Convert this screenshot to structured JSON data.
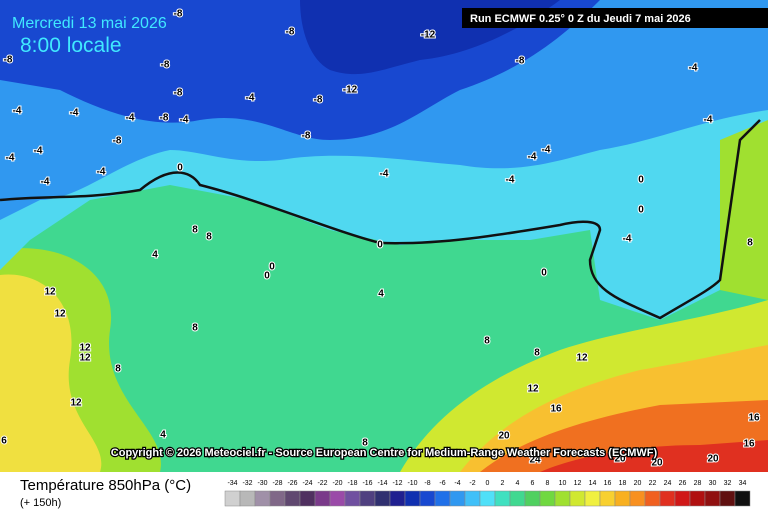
{
  "header": {
    "date": "Mercredi 13 mai 2026",
    "time": "8:00 locale",
    "run": "Run ECMWF 0.25° 0 Z du Jeudi 7 mai 2026"
  },
  "copyright": "Copyright © 2026 Meteociel.fr - Source European Centre for Medium-Range Weather Forecasts (ECMWF)",
  "footer": {
    "title": "Température 850hPa (°C)",
    "lead": "(+ 150h)"
  },
  "scale": {
    "values": [
      -34,
      -32,
      -30,
      -28,
      -26,
      -24,
      -22,
      -20,
      -18,
      -16,
      -14,
      -12,
      -10,
      -8,
      -6,
      -4,
      -2,
      0,
      2,
      4,
      6,
      8,
      10,
      12,
      14,
      16,
      18,
      20,
      22,
      24,
      26,
      28,
      30,
      32,
      34
    ],
    "colors": [
      "#d0d0d0",
      "#b8b8b8",
      "#a090a8",
      "#806888",
      "#604870",
      "#503060",
      "#7a3a8a",
      "#9a4aa8",
      "#7050a0",
      "#504080",
      "#303070",
      "#202090",
      "#1030b0",
      "#1848d0",
      "#2070e8",
      "#3098f0",
      "#40c0f8",
      "#50e0f8",
      "#40e0c0",
      "#40d890",
      "#50d060",
      "#70d840",
      "#a0e030",
      "#d0e830",
      "#f0f040",
      "#f8d030",
      "#f8b020",
      "#f89020",
      "#f06020",
      "#e03020",
      "#d01818",
      "#b01010",
      "#901010",
      "#601010",
      "#101010"
    ]
  },
  "map_labels": [
    -8,
    -8,
    -12,
    -8,
    -8,
    -8,
    -4,
    -12,
    -8,
    -4,
    -8,
    -4,
    -4,
    -4,
    -8,
    -4,
    -4,
    -8,
    -8,
    -4,
    -4,
    -4,
    -4,
    -4,
    -4,
    0,
    -4,
    -4,
    0,
    0,
    -4,
    8,
    8,
    8,
    4,
    0,
    0,
    0,
    0,
    4,
    12,
    12,
    8,
    12,
    12,
    8,
    8,
    8,
    12,
    12,
    12,
    16,
    16,
    16,
    4,
    6,
    8,
    20,
    24,
    20,
    20,
    20
  ]
}
